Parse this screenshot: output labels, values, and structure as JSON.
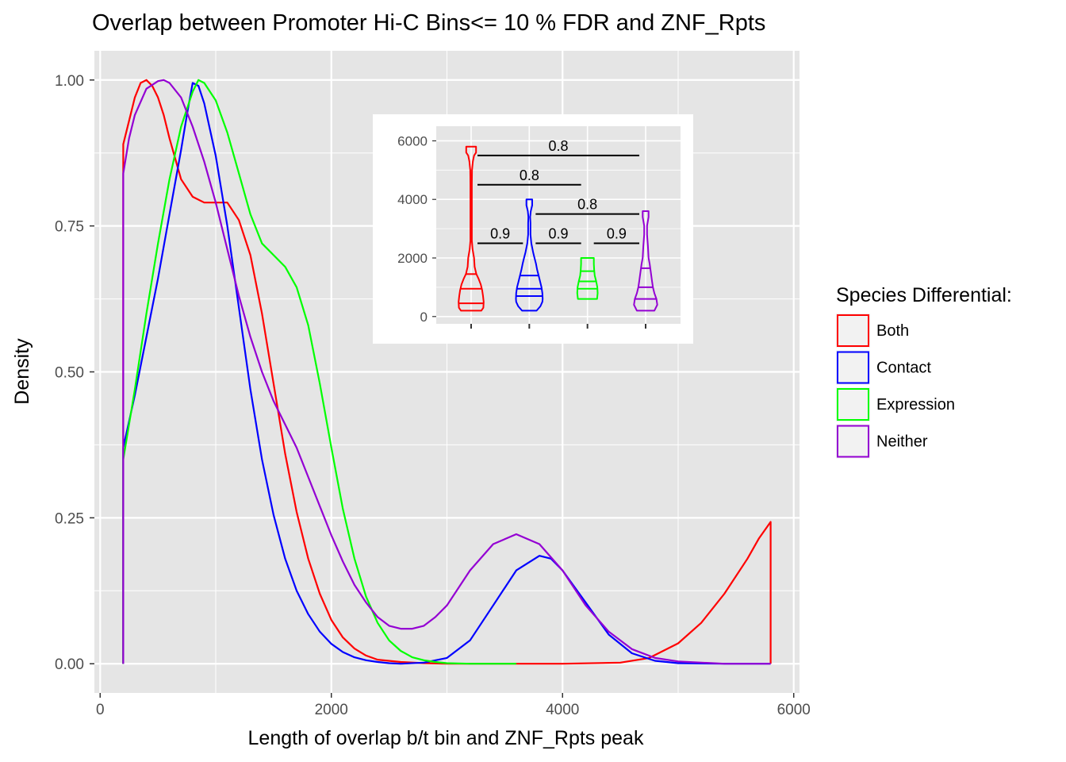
{
  "colors": {
    "Both": "#ff0000",
    "Contact": "#0000ff",
    "Expression": "#00ff00",
    "Neither": "#9400d3",
    "panel_bg": "#e5e5e5",
    "grid": "#ffffff",
    "tick_text": "#4d4d4d"
  },
  "chart_data": [
    {
      "type": "line",
      "subtype": "density",
      "title": "Overlap between Promoter Hi-C Bins<= 10 % FDR and ZNF_Rpts",
      "xlabel": "Length of overlap b/t bin and ZNF_Rpts peak",
      "ylabel": "Density",
      "xlim": [
        -50,
        6050
      ],
      "ylim": [
        -0.05,
        1.05
      ],
      "x_ticks": [
        0,
        2000,
        4000,
        6000
      ],
      "x_tick_labels": [
        "0",
        "2000",
        "4000",
        "6000"
      ],
      "y_ticks": [
        0,
        0.25,
        0.5,
        0.75,
        1
      ],
      "y_tick_labels": [
        "0.00",
        "0.25",
        "0.50",
        "0.75",
        "1.00"
      ],
      "grid": true,
      "legend": {
        "title": "Species Differential:",
        "position": "right",
        "entries": [
          "Both",
          "Contact",
          "Expression",
          "Neither"
        ]
      },
      "series": [
        {
          "name": "Both",
          "x": [
            200,
            200,
            250,
            300,
            350,
            400,
            450,
            500,
            550,
            600,
            700,
            800,
            900,
            1000,
            1100,
            1200,
            1300,
            1400,
            1500,
            1600,
            1700,
            1800,
            1900,
            2000,
            2100,
            2200,
            2300,
            2400,
            2600,
            2800,
            3000,
            3500,
            4000,
            4500,
            4750,
            5000,
            5200,
            5400,
            5600,
            5700,
            5800,
            5800
          ],
          "y": [
            0,
            0.89,
            0.93,
            0.97,
            0.995,
            1.0,
            0.99,
            0.97,
            0.94,
            0.9,
            0.83,
            0.8,
            0.79,
            0.79,
            0.79,
            0.76,
            0.7,
            0.6,
            0.48,
            0.36,
            0.26,
            0.18,
            0.12,
            0.075,
            0.045,
            0.026,
            0.014,
            0.007,
            0.003,
            0.001,
            0.0,
            0.0,
            0.0,
            0.002,
            0.01,
            0.035,
            0.07,
            0.12,
            0.18,
            0.215,
            0.243,
            0
          ],
          "style": "closed"
        },
        {
          "name": "Contact",
          "x": [
            200,
            200,
            300,
            400,
            500,
            600,
            700,
            750,
            800,
            850,
            900,
            1000,
            1100,
            1200,
            1300,
            1400,
            1500,
            1600,
            1700,
            1800,
            1900,
            2000,
            2100,
            2200,
            2300,
            2400,
            2500,
            2600,
            2800,
            3000,
            3200,
            3400,
            3600,
            3800,
            3900,
            4000,
            4200,
            4400,
            4600,
            4800,
            5000,
            5400,
            5800,
            5800
          ],
          "y": [
            0,
            0.37,
            0.46,
            0.56,
            0.66,
            0.77,
            0.88,
            0.94,
            0.995,
            0.99,
            0.96,
            0.87,
            0.75,
            0.61,
            0.47,
            0.35,
            0.255,
            0.18,
            0.125,
            0.085,
            0.055,
            0.034,
            0.02,
            0.011,
            0.006,
            0.003,
            0.001,
            0.0,
            0.002,
            0.01,
            0.04,
            0.1,
            0.16,
            0.185,
            0.18,
            0.16,
            0.105,
            0.05,
            0.018,
            0.005,
            0.001,
            0.0,
            0.0,
            0
          ],
          "style": "closed"
        },
        {
          "name": "Expression",
          "x": [
            200,
            200,
            300,
            400,
            500,
            600,
            700,
            800,
            850,
            900,
            1000,
            1100,
            1200,
            1300,
            1400,
            1500,
            1600,
            1700,
            1800,
            1900,
            2000,
            2100,
            2200,
            2300,
            2400,
            2500,
            2600,
            2700,
            2800,
            2900,
            3000,
            3200,
            3400,
            3600
          ],
          "y": [
            0,
            0.35,
            0.47,
            0.6,
            0.72,
            0.83,
            0.92,
            0.98,
            1.0,
            0.995,
            0.965,
            0.91,
            0.84,
            0.77,
            0.72,
            0.7,
            0.68,
            0.645,
            0.58,
            0.48,
            0.37,
            0.265,
            0.18,
            0.115,
            0.07,
            0.04,
            0.022,
            0.011,
            0.006,
            0.003,
            0.001,
            0.0,
            0.0,
            0.0
          ],
          "style": "open"
        },
        {
          "name": "Neither",
          "x": [
            200,
            200,
            250,
            300,
            400,
            500,
            550,
            600,
            700,
            800,
            900,
            1000,
            1100,
            1200,
            1300,
            1400,
            1500,
            1600,
            1700,
            1800,
            1900,
            2000,
            2100,
            2200,
            2300,
            2400,
            2500,
            2600,
            2700,
            2800,
            2900,
            3000,
            3200,
            3400,
            3600,
            3800,
            4000,
            4200,
            4400,
            4600,
            4800,
            5000,
            5400,
            5800,
            5800
          ],
          "y": [
            0,
            0.84,
            0.9,
            0.94,
            0.985,
            0.998,
            1.0,
            0.995,
            0.97,
            0.92,
            0.86,
            0.79,
            0.71,
            0.63,
            0.56,
            0.5,
            0.45,
            0.41,
            0.37,
            0.32,
            0.27,
            0.22,
            0.175,
            0.135,
            0.105,
            0.08,
            0.065,
            0.06,
            0.06,
            0.065,
            0.08,
            0.1,
            0.16,
            0.205,
            0.222,
            0.205,
            0.16,
            0.1,
            0.055,
            0.025,
            0.01,
            0.004,
            0.0,
            0.0,
            0
          ],
          "style": "closed"
        }
      ]
    },
    {
      "type": "violin",
      "position": "inset",
      "categories": [
        "Both",
        "Contact",
        "Expression",
        "Neither"
      ],
      "ylim": [
        -250,
        6500
      ],
      "y_ticks": [
        0,
        2000,
        4000,
        6000
      ],
      "y_tick_labels": [
        "0",
        "2000",
        "4000",
        "6000"
      ],
      "grid": true,
      "series": [
        {
          "name": "Both",
          "profile_y": [
            200,
            300,
            500,
            700,
            900,
            1100,
            1300,
            1450,
            1700,
            2000,
            2300,
            2600,
            3000,
            3500,
            4000,
            4500,
            5000,
            5300,
            5500,
            5600,
            5800
          ],
          "profile_w": [
            0.35,
            0.42,
            0.43,
            0.41,
            0.38,
            0.33,
            0.25,
            0.18,
            0.12,
            0.1,
            0.05,
            0.025,
            0.025,
            0.025,
            0.025,
            0.025,
            0.03,
            0.06,
            0.1,
            0.17,
            0.17
          ],
          "quantiles": [
            450,
            950,
            1450
          ]
        },
        {
          "name": "Contact",
          "profile_y": [
            200,
            350,
            500,
            600,
            800,
            1000,
            1200,
            1400,
            1600,
            1800,
            2000,
            2200,
            2500,
            2800,
            3200,
            3400,
            3600,
            3800,
            4000
          ],
          "profile_w": [
            0.25,
            0.38,
            0.45,
            0.46,
            0.45,
            0.42,
            0.37,
            0.32,
            0.27,
            0.23,
            0.18,
            0.13,
            0.07,
            0.04,
            0.04,
            0.03,
            0.05,
            0.1,
            0.1
          ],
          "quantiles": [
            700,
            950,
            1400
          ]
        },
        {
          "name": "Expression",
          "profile_y": [
            600,
            800,
            1000,
            1200,
            1400,
            1600,
            1800,
            2000
          ],
          "profile_w": [
            0.33,
            0.35,
            0.34,
            0.3,
            0.25,
            0.23,
            0.22,
            0.22
          ],
          "quantiles": [
            950,
            1200,
            1550
          ]
        },
        {
          "name": "Neither",
          "profile_y": [
            200,
            400,
            600,
            800,
            1000,
            1200,
            1500,
            1800,
            2000,
            2400,
            2800,
            3100,
            3400,
            3600
          ],
          "profile_w": [
            0.3,
            0.4,
            0.37,
            0.3,
            0.25,
            0.22,
            0.18,
            0.14,
            0.1,
            0.08,
            0.05,
            0.05,
            0.1,
            0.1
          ],
          "quantiles": [
            600,
            1000,
            1650
          ]
        }
      ],
      "comparisons": [
        {
          "from": "Both",
          "to": "Neither",
          "y": 5500,
          "label": "0.8"
        },
        {
          "from": "Both",
          "to": "Expression",
          "y": 4500,
          "label": "0.8"
        },
        {
          "from": "Contact",
          "to": "Neither",
          "y": 3500,
          "label": "0.8"
        },
        {
          "from": "Both",
          "to": "Contact",
          "y": 2500,
          "label": "0.9"
        },
        {
          "from": "Contact",
          "to": "Expression",
          "y": 2500,
          "label": "0.9"
        },
        {
          "from": "Expression",
          "to": "Neither",
          "y": 2500,
          "label": "0.9"
        }
      ]
    }
  ]
}
